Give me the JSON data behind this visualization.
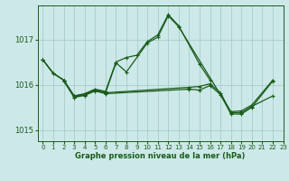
{
  "title": "Graphe pression niveau de la mer (hPa)",
  "bg_color": "#cce8e8",
  "grid_color": "#aacccc",
  "line_color": "#1a5c1a",
  "xlim": [
    -0.5,
    23
  ],
  "ylim": [
    1014.75,
    1017.75
  ],
  "yticks": [
    1015,
    1016,
    1017
  ],
  "xticks": [
    0,
    1,
    2,
    3,
    4,
    5,
    6,
    7,
    8,
    9,
    10,
    11,
    12,
    13,
    14,
    15,
    16,
    17,
    18,
    19,
    20,
    21,
    22,
    23
  ],
  "lines": [
    {
      "x": [
        0,
        1,
        2,
        3,
        4,
        5,
        6,
        7,
        8,
        9,
        10,
        11,
        12,
        13,
        15,
        16
      ],
      "y": [
        1016.55,
        1016.25,
        1016.1,
        1015.75,
        1015.8,
        1015.9,
        1015.85,
        1016.5,
        1016.6,
        1016.65,
        1016.95,
        1017.1,
        1017.55,
        1017.3,
        1016.45,
        1016.1
      ]
    },
    {
      "x": [
        0,
        1,
        2,
        3,
        4,
        5,
        6,
        7,
        8,
        10,
        11,
        12,
        13,
        18,
        19,
        20,
        22
      ],
      "y": [
        1016.55,
        1016.25,
        1016.1,
        1015.75,
        1015.78,
        1015.88,
        1015.82,
        1016.48,
        1016.28,
        1016.92,
        1017.05,
        1017.52,
        1017.28,
        1015.4,
        1015.42,
        1015.55,
        1016.1
      ]
    },
    {
      "x": [
        2,
        3,
        4,
        5,
        6,
        14,
        15,
        16,
        17,
        18,
        19,
        20,
        22
      ],
      "y": [
        1016.08,
        1015.72,
        1015.78,
        1015.88,
        1015.82,
        1015.94,
        1015.96,
        1016.02,
        1015.82,
        1015.38,
        1015.38,
        1015.52,
        1015.75
      ]
    },
    {
      "x": [
        0,
        1,
        2,
        3,
        4,
        5,
        6,
        14,
        15,
        16,
        17,
        18,
        19,
        20,
        22
      ],
      "y": [
        1016.55,
        1016.25,
        1016.1,
        1015.72,
        1015.76,
        1015.86,
        1015.8,
        1015.9,
        1015.88,
        1015.98,
        1015.78,
        1015.35,
        1015.35,
        1015.5,
        1016.08
      ]
    }
  ]
}
